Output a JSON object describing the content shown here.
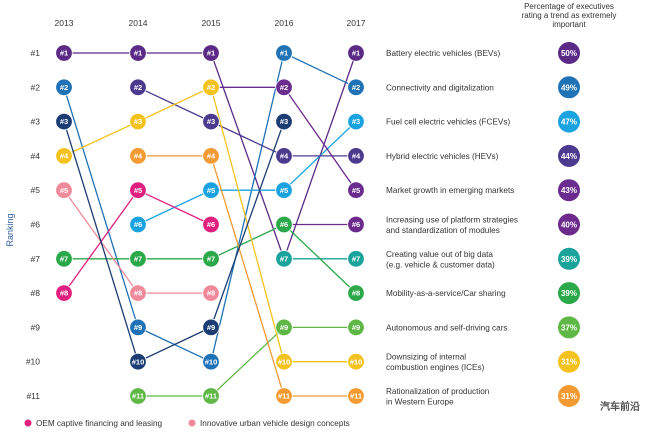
{
  "chart_data": {
    "type": "line",
    "title": "",
    "ylabel": "Ranking",
    "xlabel": "",
    "years": [
      "2013",
      "2014",
      "2015",
      "2016",
      "2017"
    ],
    "rank_labels": [
      "#1",
      "#2",
      "#3",
      "#4",
      "#5",
      "#6",
      "#7",
      "#8",
      "#9",
      "#10",
      "#11"
    ],
    "header": [
      "Percentage of executives",
      "rating a trend as extremely",
      "important"
    ],
    "series": [
      {
        "name": "Battery electric vehicles (BEVs)",
        "color": "#5b2a86",
        "ranks": [
          1,
          1,
          1,
          7,
          1
        ],
        "percent": "50%"
      },
      {
        "name": "Connectivity and digitalization",
        "color": "#1f72b5",
        "ranks": [
          2,
          9,
          10,
          1,
          2
        ],
        "percent": "49%"
      },
      {
        "name": "Fuel cell electric vehicles (FCEVs)",
        "color": "#1aa3e0",
        "ranks": [
          null,
          6,
          5,
          5,
          3
        ],
        "percent": "47%"
      },
      {
        "name": "Hybrid electric vehicles (HEVs)",
        "color": "#4b3b8f",
        "ranks": [
          null,
          2,
          3,
          4,
          4
        ],
        "percent": "44%"
      },
      {
        "name": "Market growth in emerging markets",
        "color": "#6a2c8e",
        "ranks": [
          null,
          null,
          2,
          2,
          5
        ],
        "percent": "43%"
      },
      {
        "name": "Increasing use of platform strategies and standardization of modules",
        "color": "#6b2a8c",
        "ranks": [
          null,
          null,
          null,
          6,
          6
        ],
        "percent": "40%"
      },
      {
        "name": "Creating value out of big data (e.g. vehicle & customer data)",
        "color": "#1aa39a",
        "ranks": [
          null,
          null,
          null,
          7,
          7
        ],
        "percent": "39%"
      },
      {
        "name": "Mobility-as-a-service/Car sharing",
        "color": "#2aa84a",
        "ranks": [
          7,
          7,
          7,
          6,
          8
        ],
        "percent": "39%"
      },
      {
        "name": "Autonomous and self-driving cars",
        "color": "#5fb845",
        "ranks": [
          null,
          11,
          11,
          9,
          9
        ],
        "percent": "37%"
      },
      {
        "name": "Downsizing of internal combustion engines (ICEs)",
        "color": "#f3c21c",
        "ranks": [
          4,
          3,
          2,
          10,
          10
        ],
        "percent": "31%"
      },
      {
        "name": "Rationalization of production in Western Europe",
        "color": "#f39a32",
        "ranks": [
          null,
          4,
          4,
          11,
          11
        ],
        "percent": "31%"
      },
      {
        "name": "OEM captive financing and leasing",
        "color": "#e0207f",
        "ranks": [
          8,
          5,
          6
        ],
        "percent": ""
      },
      {
        "name": "Innovative urban vehicle design concepts",
        "color": "#f08a9a",
        "ranks": [
          5,
          8,
          8
        ],
        "percent": ""
      },
      {
        "name": "",
        "color": "#1b3d73",
        "ranks": [
          3,
          10,
          9,
          3
        ],
        "percent": ""
      }
    ],
    "trend_labels": [
      [
        "Battery electric vehicles (BEVs)"
      ],
      [
        "Connectivity and digitalization"
      ],
      [
        "Fuel cell electric vehicles (FCEVs)"
      ],
      [
        "Hybrid electric vehicles (HEVs)"
      ],
      [
        "Market growth in emerging markets"
      ],
      [
        "Increasing use of platform strategies",
        "and standardization of modules"
      ],
      [
        "Creating value out of big data",
        "(e.g. vehicle & customer data)"
      ],
      [
        "Mobility-as-a-service/Car sharing"
      ],
      [
        "Autonomous and self-driving cars"
      ],
      [
        "Downsizing of internal",
        "combustion engines (ICEs)"
      ],
      [
        "Rationalization of production",
        "in Western Europe"
      ]
    ],
    "legend": [
      {
        "label": "OEM captive financing and leasing",
        "color": "#e0207f"
      },
      {
        "label": "Innovative urban vehicle design concepts",
        "color": "#f08a9a"
      }
    ],
    "watermark": "汽车前沿"
  }
}
